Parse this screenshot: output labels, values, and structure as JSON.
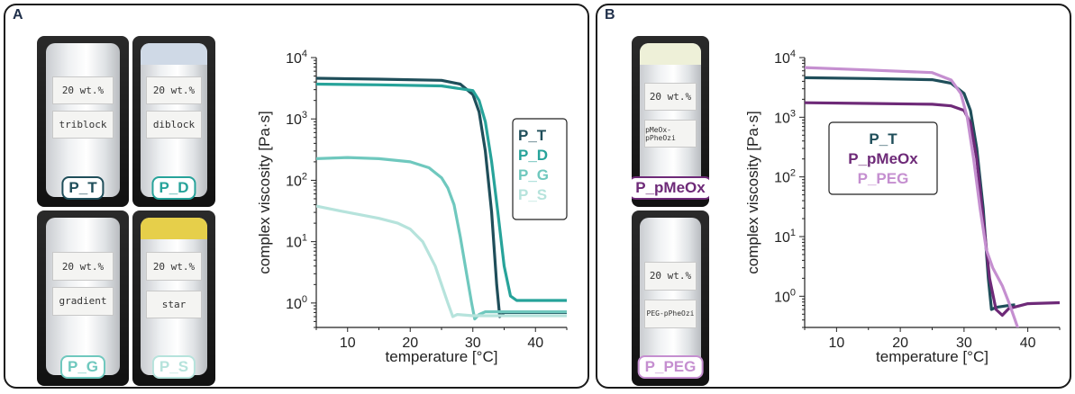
{
  "panels": {
    "a": {
      "label": "A",
      "photos": [
        {
          "lines": [
            "20 wt.%",
            "triblock"
          ],
          "tag": "P_T",
          "color": "#1f4e5a"
        },
        {
          "lines": [
            "20 wt.%",
            "diblock"
          ],
          "tag": "P_D",
          "color": "#27a39a"
        },
        {
          "lines": [
            "20 wt.%",
            "gradient"
          ],
          "tag": "P_G",
          "color": "#6fc8be"
        },
        {
          "lines": [
            "20 wt.%",
            "star"
          ],
          "tag": "P_S",
          "color": "#b6e3dc"
        }
      ]
    },
    "b": {
      "label": "B",
      "photos": [
        {
          "lines": [
            "20 wt.%",
            "pMeOx-pPheOzi"
          ],
          "tag": "P_pMeOx",
          "color": "#6e2a78"
        },
        {
          "lines": [
            "20 wt.%",
            "PEG-pPheOzi"
          ],
          "tag": "P_PEG",
          "color": "#c58fd0"
        }
      ]
    }
  },
  "chart_data": [
    {
      "type": "line",
      "xlabel": "temperature [°C]",
      "ylabel": "complex viscosity [Pa·s]",
      "y_scale": "log",
      "xlim": [
        5,
        45
      ],
      "ylim": [
        0.4,
        10000
      ],
      "x_ticks": [
        "10",
        "20",
        "30",
        "40"
      ],
      "y_tick_base": "10",
      "y_tick_exponents": [
        "0",
        "1",
        "2",
        "3",
        "4"
      ],
      "legend_position": "right",
      "series": [
        {
          "name": "P_T",
          "color": "#1f4e5a",
          "points": [
            [
              5,
              4600
            ],
            [
              15,
              4450
            ],
            [
              25,
              4250
            ],
            [
              28,
              3700
            ],
            [
              30,
              2500
            ],
            [
              31,
              1300
            ],
            [
              32,
              300
            ],
            [
              33,
              30
            ],
            [
              33.8,
              2
            ],
            [
              34.3,
              0.6
            ],
            [
              35,
              0.7
            ],
            [
              40,
              0.7
            ],
            [
              45,
              0.7
            ]
          ]
        },
        {
          "name": "P_D",
          "color": "#27a39a",
          "points": [
            [
              5,
              3700
            ],
            [
              15,
              3600
            ],
            [
              25,
              3450
            ],
            [
              30,
              2900
            ],
            [
              31,
              2000
            ],
            [
              32,
              900
            ],
            [
              33,
              200
            ],
            [
              34,
              30
            ],
            [
              35,
              4
            ],
            [
              36,
              1.3
            ],
            [
              37,
              1.1
            ],
            [
              45,
              1.1
            ]
          ]
        },
        {
          "name": "P_G",
          "color": "#6fc8be",
          "points": [
            [
              5,
              225
            ],
            [
              10,
              235
            ],
            [
              15,
              225
            ],
            [
              20,
              200
            ],
            [
              23,
              160
            ],
            [
              25,
              110
            ],
            [
              26,
              75
            ],
            [
              27,
              40
            ],
            [
              28,
              12
            ],
            [
              29,
              3
            ],
            [
              29.8,
              1
            ],
            [
              30.3,
              0.55
            ],
            [
              31,
              0.65
            ],
            [
              32,
              0.72
            ],
            [
              45,
              0.72
            ]
          ]
        },
        {
          "name": "P_S",
          "color": "#b6e3dc",
          "points": [
            [
              5,
              38
            ],
            [
              10,
              30
            ],
            [
              15,
              24
            ],
            [
              18,
              20
            ],
            [
              20,
              16
            ],
            [
              22,
              10
            ],
            [
              24,
              4
            ],
            [
              25,
              2
            ],
            [
              26,
              1
            ],
            [
              26.8,
              0.6
            ],
            [
              27.5,
              0.65
            ],
            [
              30,
              0.62
            ],
            [
              45,
              0.62
            ]
          ]
        }
      ]
    },
    {
      "type": "line",
      "xlabel": "temperature [°C]",
      "ylabel": "complex viscosity [Pa·s]",
      "y_scale": "log",
      "xlim": [
        5,
        45
      ],
      "ylim": [
        0.3,
        10000
      ],
      "x_ticks": [
        "10",
        "20",
        "30",
        "40"
      ],
      "y_tick_base": "10",
      "y_tick_exponents": [
        "0",
        "1",
        "2",
        "3",
        "4"
      ],
      "legend_position": "center",
      "series": [
        {
          "name": "P_T",
          "color": "#1f4e5a",
          "points": [
            [
              5,
              4600
            ],
            [
              15,
              4450
            ],
            [
              25,
              4250
            ],
            [
              28,
              3700
            ],
            [
              30,
              2500
            ],
            [
              31,
              1300
            ],
            [
              32,
              300
            ],
            [
              33,
              30
            ],
            [
              33.8,
              2
            ],
            [
              34.3,
              0.6
            ],
            [
              35,
              0.65
            ],
            [
              37,
              0.7
            ],
            [
              38,
              0.72
            ]
          ]
        },
        {
          "name": "P_pMeOx",
          "color": "#6e2a78",
          "points": [
            [
              5,
              1750
            ],
            [
              15,
              1700
            ],
            [
              25,
              1650
            ],
            [
              28,
              1550
            ],
            [
              30,
              1300
            ],
            [
              31,
              800
            ],
            [
              32,
              200
            ],
            [
              33,
              20
            ],
            [
              34,
              2
            ],
            [
              35,
              0.6
            ],
            [
              36,
              0.48
            ],
            [
              37,
              0.62
            ],
            [
              40,
              0.75
            ],
            [
              45,
              0.78
            ]
          ]
        },
        {
          "name": "P_PEG",
          "color": "#c58fd0",
          "points": [
            [
              5,
              6800
            ],
            [
              15,
              6200
            ],
            [
              25,
              5600
            ],
            [
              28,
              4200
            ],
            [
              29.5,
              2500
            ],
            [
              30.5,
              1000
            ],
            [
              31.5,
              200
            ],
            [
              32.5,
              30
            ],
            [
              33.5,
              6
            ],
            [
              34.5,
              3
            ],
            [
              36,
              1.5
            ],
            [
              37,
              0.8
            ],
            [
              38,
              0.4
            ],
            [
              38.5,
              0.28
            ]
          ]
        }
      ]
    }
  ]
}
